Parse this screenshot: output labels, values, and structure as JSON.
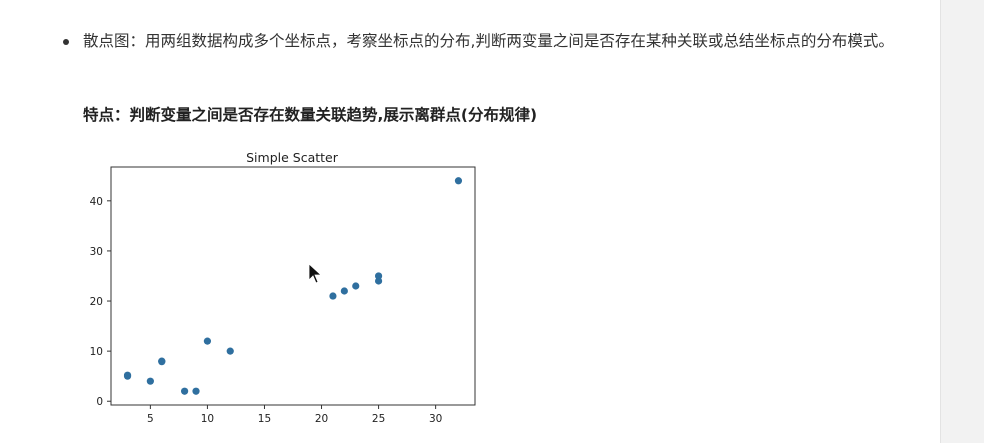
{
  "bullet": {
    "text": "散点图：用两组数据构成多个坐标点，考察坐标点的分布,判断两变量之间是否存在某种关联或总结坐标点的分布模式。"
  },
  "feature": {
    "text": "特点：判断变量之间是否存在数量关联趋势,展示离群点(分布规律)"
  },
  "chart_data": {
    "type": "scatter",
    "title": "Simple Scatter",
    "xlabel": "",
    "ylabel": "",
    "xlim": [
      1.55,
      33.45
    ],
    "ylim": [
      -0.75,
      46.75
    ],
    "x_ticks": [
      5,
      10,
      15,
      20,
      25,
      30
    ],
    "y_ticks": [
      0,
      10,
      20,
      30,
      40
    ],
    "x_tick_labels": [
      "5",
      "10",
      "15",
      "20",
      "25",
      "30"
    ],
    "y_tick_labels": [
      "0",
      "10",
      "20",
      "30",
      "40"
    ],
    "grid": false,
    "marker_color": "#2f6f9f",
    "points": [
      {
        "x": 3,
        "y": 5
      },
      {
        "x": 3,
        "y": 5.2
      },
      {
        "x": 5,
        "y": 4
      },
      {
        "x": 6,
        "y": 8
      },
      {
        "x": 6,
        "y": 7.9
      },
      {
        "x": 8,
        "y": 2
      },
      {
        "x": 9,
        "y": 2
      },
      {
        "x": 10,
        "y": 12
      },
      {
        "x": 12,
        "y": 10
      },
      {
        "x": 21,
        "y": 21
      },
      {
        "x": 22,
        "y": 22
      },
      {
        "x": 23,
        "y": 23
      },
      {
        "x": 25,
        "y": 24
      },
      {
        "x": 25,
        "y": 25
      },
      {
        "x": 32,
        "y": 44
      }
    ]
  }
}
